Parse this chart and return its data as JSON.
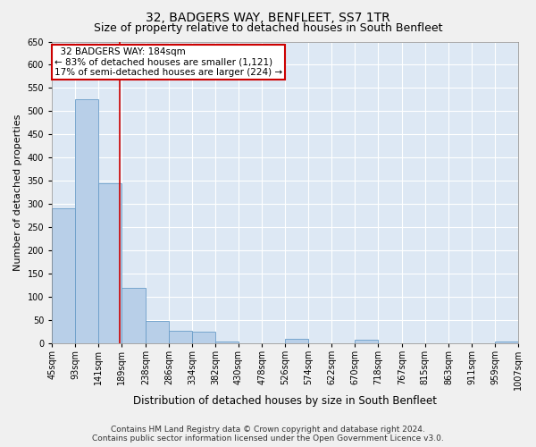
{
  "title": "32, BADGERS WAY, BENFLEET, SS7 1TR",
  "subtitle": "Size of property relative to detached houses in South Benfleet",
  "xlabel": "Distribution of detached houses by size in South Benfleet",
  "ylabel": "Number of detached properties",
  "footer_line1": "Contains HM Land Registry data © Crown copyright and database right 2024.",
  "footer_line2": "Contains public sector information licensed under the Open Government Licence v3.0.",
  "annotation_line1": "  32 BADGERS WAY: 184sqm  ",
  "annotation_line2": "← 83% of detached houses are smaller (1,121)",
  "annotation_line3": "17% of semi-detached houses are larger (224) →",
  "property_size_sqm": 184,
  "bin_edges": [
    45,
    93,
    141,
    189,
    238,
    286,
    334,
    382,
    430,
    478,
    526,
    574,
    622,
    670,
    718,
    767,
    815,
    863,
    911,
    959,
    1007
  ],
  "bar_heights": [
    290,
    525,
    345,
    120,
    48,
    28,
    25,
    5,
    0,
    0,
    10,
    0,
    0,
    8,
    0,
    0,
    0,
    0,
    0,
    5
  ],
  "bar_color": "#b8cfe8",
  "bar_edge_color": "#6a9dc8",
  "red_line_color": "#cc0000",
  "background_color": "#dde8f4",
  "plot_bg_color": "#dde8f4",
  "fig_bg_color": "#f0f0f0",
  "annotation_box_color": "#ffffff",
  "annotation_box_edge": "#cc0000",
  "ylim": [
    0,
    650
  ],
  "yticks": [
    0,
    50,
    100,
    150,
    200,
    250,
    300,
    350,
    400,
    450,
    500,
    550,
    600,
    650
  ],
  "title_fontsize": 10,
  "subtitle_fontsize": 9,
  "xlabel_fontsize": 8.5,
  "ylabel_fontsize": 8,
  "tick_fontsize": 7,
  "annotation_fontsize": 7.5,
  "footer_fontsize": 6.5
}
